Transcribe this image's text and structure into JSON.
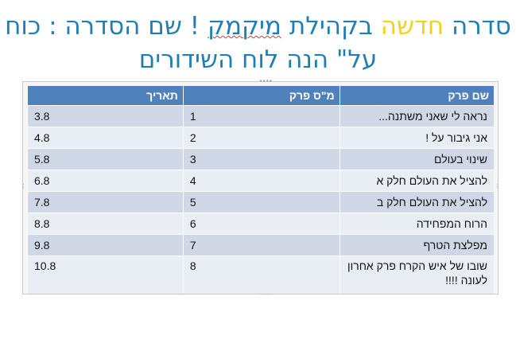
{
  "title": {
    "part1": "סדרה ",
    "part2": "חדשה",
    "part3": " בקהילת ",
    "part4": "מיקמק",
    "part5": " ! שם הסדרה : כוח",
    "line2": "על\" הנה לוח השידורים"
  },
  "table": {
    "headers": {
      "name": "שם פרק",
      "num": "מ\"ס פרק",
      "date": "תאריך"
    },
    "rows": [
      {
        "name": "נראה לי שאני משתנה...",
        "num": "1",
        "date": "3.8"
      },
      {
        "name": "אני גיבור על !",
        "num": "2",
        "date": "4.8"
      },
      {
        "name": "שינוי בעולם",
        "num": "3",
        "date": "5.8"
      },
      {
        "name": "להציל את העולם חלק א",
        "num": "4",
        "date": "6.8"
      },
      {
        "name": "להציל את העולם חלק ב",
        "num": "5",
        "date": "7.8"
      },
      {
        "name": "הרוח המפחידה",
        "num": "6",
        "date": "8.8"
      },
      {
        "name": "מפלצת הטרף",
        "num": "7",
        "date": "9.8"
      },
      {
        "name": "שובו של איש הקרח פרק אחרון לעונה !!!!",
        "num": "8",
        "date": "10.8"
      }
    ]
  }
}
